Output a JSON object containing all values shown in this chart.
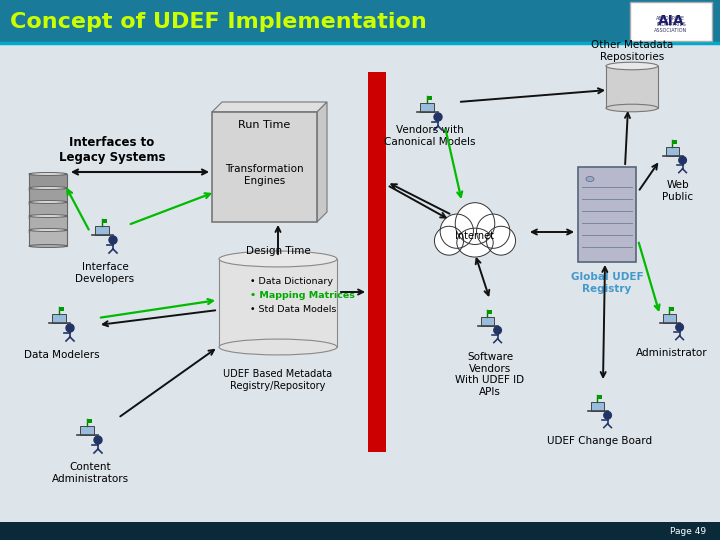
{
  "title": "Concept of UDEF Implementation",
  "title_color": "#CCFF00",
  "header_bg": "#1a7a9a",
  "footer_bg": "#0a2a3a",
  "content_bg": "#dde4ea",
  "page_text": "Page 49",
  "red_bar_color": "#cc0000",
  "labels": {
    "interfaces_to_legacy": "Interfaces to\nLegacy Systems",
    "run_time": "Run Time",
    "transformation": "Transformation\nEngines",
    "design_time": "Design Time",
    "data_dict": "• Data Dictionary",
    "mapping": "• Mapping Matrices",
    "std_data": "• Std Data Models",
    "udef_registry": "UDEF Based Metadata\nRegistry/Repository",
    "interface_dev": "Interface\nDevelopers",
    "data_modelers": "Data Modelers",
    "content_admin": "Content\nAdministrators",
    "vendors": "Vendors with\nCanonical Models",
    "other_meta": "Other Metadata\nRepositories",
    "internet": "Internet",
    "global_udef": "Global UDEF\nRegistry",
    "web_public": "Web\nPublic",
    "software_vendors": "Software\nVendors\nWith UDEF ID\nAPIs",
    "udef_change": "UDEF Change Board",
    "administrator": "Administrator"
  },
  "mapping_color": "#00aa00",
  "global_udef_color": "#4499cc",
  "arrow_green": "#00bb00",
  "arrow_black": "#111111"
}
